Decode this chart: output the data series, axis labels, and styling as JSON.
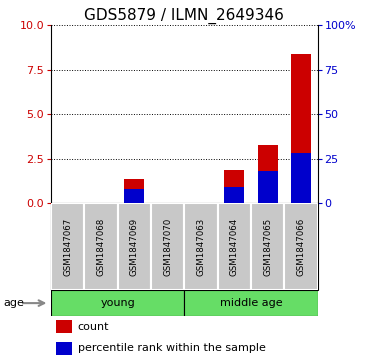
{
  "title": "GDS5879 / ILMN_2649346",
  "samples": [
    "GSM1847067",
    "GSM1847068",
    "GSM1847069",
    "GSM1847070",
    "GSM1847063",
    "GSM1847064",
    "GSM1847065",
    "GSM1847066"
  ],
  "count_values": [
    0,
    0,
    1.35,
    0,
    0,
    1.85,
    3.3,
    8.4
  ],
  "percentile_values": [
    0,
    0,
    8,
    0,
    0,
    9,
    18,
    28
  ],
  "groups": [
    {
      "label": "young",
      "start": 0,
      "end": 3,
      "color": "#66DD66"
    },
    {
      "label": "middle age",
      "start": 4,
      "end": 7,
      "color": "#66DD66"
    }
  ],
  "ylim_left": [
    0,
    10
  ],
  "ylim_right": [
    0,
    100
  ],
  "yticks_left": [
    0,
    2.5,
    5,
    7.5,
    10
  ],
  "yticks_right": [
    0,
    25,
    50,
    75,
    100
  ],
  "ytick_labels_right": [
    "0",
    "25",
    "50",
    "75",
    "100%"
  ],
  "bar_color_count": "#CC0000",
  "bar_color_percentile": "#0000CC",
  "bar_width": 0.6,
  "age_label": "age",
  "legend_count_label": "count",
  "legend_percentile_label": "percentile rank within the sample",
  "sample_box_color": "#C8C8C8",
  "title_fontsize": 11,
  "tick_fontsize": 8,
  "label_fontsize": 8
}
